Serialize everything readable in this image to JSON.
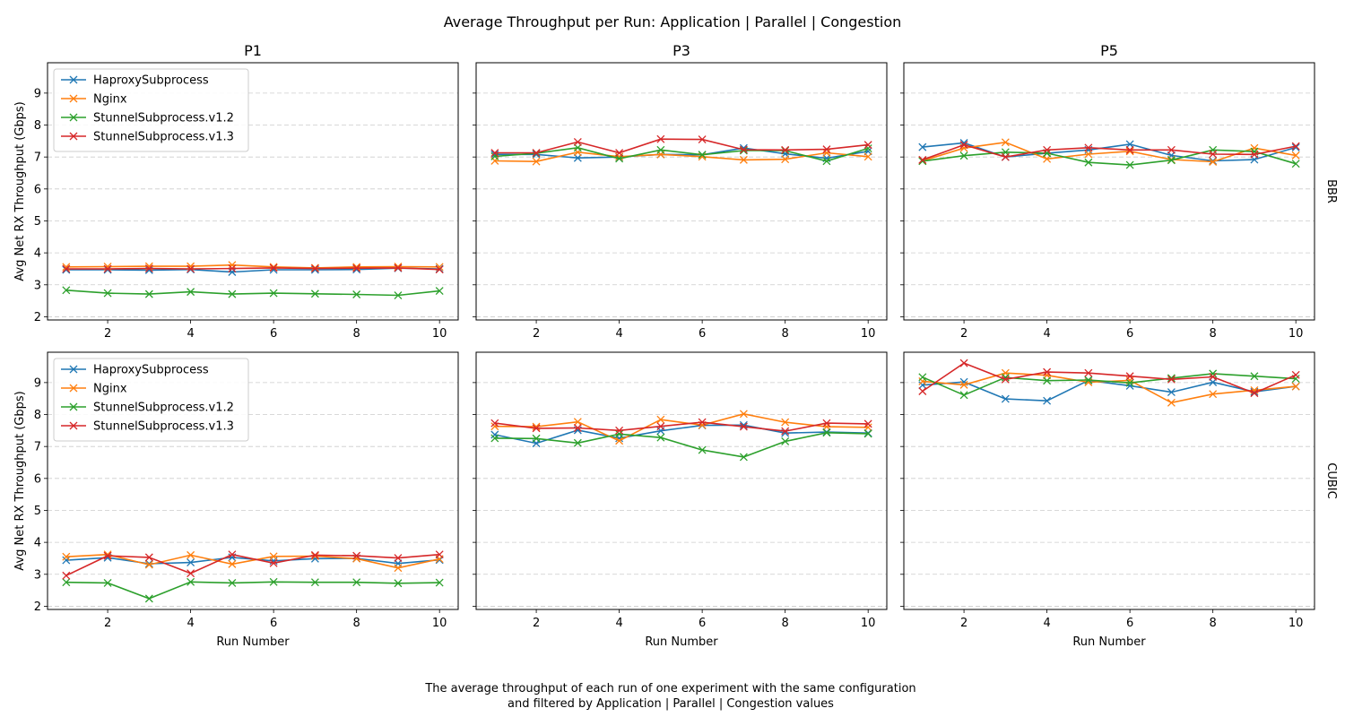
{
  "title": "Average Throughput per Run: Application | Parallel | Congestion",
  "caption": [
    "The average throughput of each run of one experiment with the same configuration",
    "and filtered by Application | Parallel | Congestion values"
  ],
  "colors": {
    "HaproxySubprocess": "#1f77b4",
    "Nginx": "#ff7f0e",
    "StunnelSubprocess.v1.2": "#2ca02c",
    "StunnelSubprocess.v1.3": "#d62728"
  },
  "chart_data": {
    "type": "line",
    "marker": "x",
    "xlabel": "Run Number",
    "ylabel": "Avg Net RX Throughput (Gbps)",
    "x": [
      1,
      2,
      3,
      4,
      5,
      6,
      7,
      8,
      9,
      10
    ],
    "xticks": [
      2,
      4,
      6,
      8,
      10
    ],
    "yticks": [
      2,
      3,
      4,
      5,
      6,
      7,
      8,
      9
    ],
    "ylim": [
      1.9,
      9.95
    ],
    "xlim": [
      0.55,
      10.45
    ],
    "grid": "y-dashed",
    "legend_placement": "top-left",
    "columns": [
      "P1",
      "P3",
      "P5"
    ],
    "rows": [
      "BBR",
      "CUBIC"
    ],
    "panels": [
      {
        "row": "BBR",
        "col": "P1",
        "legend": true,
        "series": [
          {
            "name": "HaproxySubprocess",
            "values": [
              3.47,
              3.47,
              3.46,
              3.48,
              3.4,
              3.47,
              3.47,
              3.48,
              3.52,
              3.5
            ]
          },
          {
            "name": "Nginx",
            "values": [
              3.56,
              3.57,
              3.58,
              3.58,
              3.62,
              3.56,
              3.53,
              3.56,
              3.57,
              3.56
            ]
          },
          {
            "name": "StunnelSubprocess.v1.2",
            "values": [
              2.83,
              2.74,
              2.71,
              2.78,
              2.71,
              2.74,
              2.72,
              2.7,
              2.67,
              2.81
            ]
          },
          {
            "name": "StunnelSubprocess.v1.3",
            "values": [
              3.5,
              3.5,
              3.51,
              3.5,
              3.51,
              3.53,
              3.51,
              3.52,
              3.53,
              3.48
            ]
          }
        ]
      },
      {
        "row": "BBR",
        "col": "P3",
        "legend": false,
        "series": [
          {
            "name": "HaproxySubprocess",
            "values": [
              7.08,
              7.08,
              6.97,
              7.0,
              7.08,
              7.07,
              7.28,
              7.1,
              6.96,
              7.18
            ]
          },
          {
            "name": "Nginx",
            "values": [
              6.88,
              6.86,
              7.15,
              7.01,
              7.08,
              7.01,
              6.91,
              6.93,
              7.13,
              7.01
            ]
          },
          {
            "name": "StunnelSubprocess.v1.2",
            "values": [
              7.02,
              7.12,
              7.29,
              6.95,
              7.22,
              7.07,
              7.2,
              7.2,
              6.87,
              7.27
            ]
          },
          {
            "name": "StunnelSubprocess.v1.3",
            "values": [
              7.13,
              7.13,
              7.47,
              7.13,
              7.56,
              7.55,
              7.23,
              7.22,
              7.24,
              7.38
            ]
          }
        ]
      },
      {
        "row": "BBR",
        "col": "P5",
        "legend": false,
        "series": [
          {
            "name": "HaproxySubprocess",
            "values": [
              7.31,
              7.44,
              7.0,
              7.12,
              7.22,
              7.4,
              7.05,
              6.88,
              6.92,
              7.3
            ]
          },
          {
            "name": "Nginx",
            "values": [
              6.88,
              7.28,
              7.46,
              6.94,
              7.09,
              7.18,
              6.92,
              6.85,
              7.28,
              7.05
            ]
          },
          {
            "name": "StunnelSubprocess.v1.2",
            "values": [
              6.87,
              7.04,
              7.15,
              7.12,
              6.83,
              6.75,
              6.9,
              7.22,
              7.17,
              6.79
            ]
          },
          {
            "name": "StunnelSubprocess.v1.3",
            "values": [
              6.91,
              7.38,
              7.0,
              7.22,
              7.29,
              7.22,
              7.22,
              7.09,
              7.08,
              7.34
            ]
          }
        ]
      },
      {
        "row": "CUBIC",
        "col": "P1",
        "legend": true,
        "series": [
          {
            "name": "HaproxySubprocess",
            "values": [
              3.44,
              3.52,
              3.33,
              3.37,
              3.53,
              3.42,
              3.49,
              3.5,
              3.34,
              3.45
            ]
          },
          {
            "name": "Nginx",
            "values": [
              3.55,
              3.62,
              3.3,
              3.6,
              3.32,
              3.56,
              3.57,
              3.49,
              3.2,
              3.48
            ]
          },
          {
            "name": "StunnelSubprocess.v1.2",
            "values": [
              2.75,
              2.73,
              2.24,
              2.76,
              2.73,
              2.76,
              2.75,
              2.75,
              2.72,
              2.74
            ]
          },
          {
            "name": "StunnelSubprocess.v1.3",
            "values": [
              2.96,
              3.58,
              3.53,
              3.03,
              3.62,
              3.35,
              3.6,
              3.58,
              3.51,
              3.62
            ]
          }
        ]
      },
      {
        "row": "CUBIC",
        "col": "P3",
        "legend": false,
        "series": [
          {
            "name": "HaproxySubprocess",
            "values": [
              7.37,
              7.1,
              7.51,
              7.26,
              7.49,
              7.66,
              7.67,
              7.42,
              7.45,
              7.42
            ]
          },
          {
            "name": "Nginx",
            "values": [
              7.63,
              7.62,
              7.77,
              7.18,
              7.84,
              7.67,
              8.02,
              7.76,
              7.62,
              7.6
            ]
          },
          {
            "name": "StunnelSubprocess.v1.2",
            "values": [
              7.26,
              7.25,
              7.11,
              7.39,
              7.28,
              6.89,
              6.67,
              7.16,
              7.43,
              7.4
            ]
          },
          {
            "name": "StunnelSubprocess.v1.3",
            "values": [
              7.73,
              7.57,
              7.58,
              7.5,
              7.63,
              7.76,
              7.62,
              7.48,
              7.73,
              7.71
            ]
          }
        ]
      },
      {
        "row": "CUBIC",
        "col": "P5",
        "legend": false,
        "series": [
          {
            "name": "HaproxySubprocess",
            "values": [
              8.92,
              9.02,
              8.49,
              8.43,
              9.07,
              8.9,
              8.7,
              9.01,
              8.71,
              8.88
            ]
          },
          {
            "name": "Nginx",
            "values": [
              9.04,
              8.93,
              9.3,
              9.23,
              9.01,
              9.07,
              8.37,
              8.64,
              8.76,
              8.88
            ]
          },
          {
            "name": "StunnelSubprocess.v1.2",
            "values": [
              9.17,
              8.61,
              9.16,
              9.06,
              9.08,
              8.99,
              9.14,
              9.28,
              9.2,
              9.12
            ]
          },
          {
            "name": "StunnelSubprocess.v1.3",
            "values": [
              8.73,
              9.61,
              9.1,
              9.33,
              9.3,
              9.2,
              9.1,
              9.18,
              8.67,
              9.24
            ]
          }
        ]
      }
    ]
  }
}
